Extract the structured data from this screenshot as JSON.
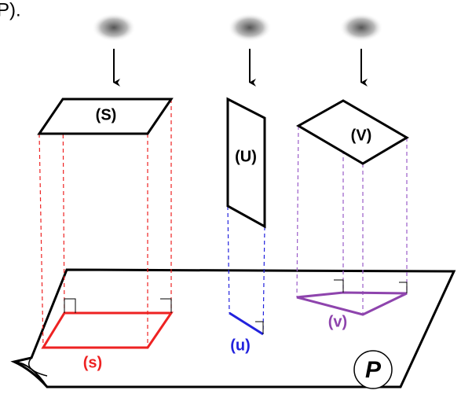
{
  "header": {
    "title": "P)."
  },
  "objects": [
    {
      "label": "(S)",
      "projection_label": "(s)"
    },
    {
      "label": "(U)",
      "projection_label": "(u)"
    },
    {
      "label": "(V)",
      "projection_label": "(v)"
    }
  ],
  "plane": {
    "label": "P"
  }
}
